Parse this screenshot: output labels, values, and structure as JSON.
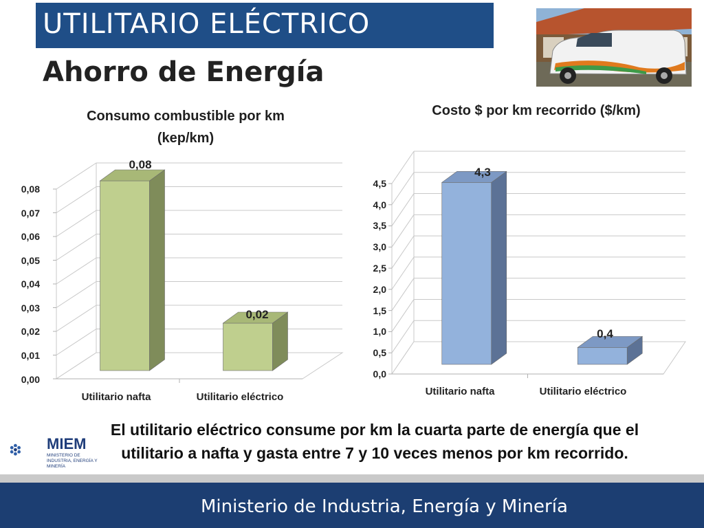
{
  "header": {
    "title": "UTILITARIO ELÉCTRICO",
    "subtitle": "Ahorro de Energía"
  },
  "chart_data": [
    {
      "type": "bar",
      "title": "Consumo combustible por km (kep/km)",
      "categories": [
        "Utilitario nafta",
        "Utilitario eléctrico"
      ],
      "values": [
        0.08,
        0.02
      ],
      "value_labels": [
        "0,08",
        "0,02"
      ],
      "yticks": [
        "0,00",
        "0,01",
        "0,02",
        "0,03",
        "0,04",
        "0,05",
        "0,06",
        "0,07",
        "0,08"
      ],
      "ylim": [
        0,
        0.08
      ],
      "xlabel": "",
      "ylabel": "",
      "bar_color": "#bfcf8e",
      "bar_side_color": "#7f8c5a",
      "bar_top_color": "#a8b877"
    },
    {
      "type": "bar",
      "title": "Costo $ por km recorrido ($/km)",
      "categories": [
        "Utilitario nafta",
        "Utilitario eléctrico"
      ],
      "values": [
        4.3,
        0.4
      ],
      "value_labels": [
        "4,3",
        "0,4"
      ],
      "yticks": [
        "0,0",
        "0,5",
        "1,0",
        "1,5",
        "2,0",
        "2,5",
        "3,0",
        "3,5",
        "4,0",
        "4,5"
      ],
      "ylim": [
        0,
        4.5
      ],
      "xlabel": "",
      "ylabel": "",
      "bar_color": "#93b2dc",
      "bar_side_color": "#5c7296",
      "bar_top_color": "#7d99c4"
    }
  ],
  "caption": "El utilitario eléctrico consume por km la cuarta parte de energía que el utilitario a nafta y gasta entre 7 y 10 veces menos por km recorrido.",
  "logo": {
    "name": "MIEM",
    "subtitle": "MINISTERIO DE INDUSTRIA, ENERGÍA Y MINERÍA"
  },
  "footer": {
    "text": "Ministerio de Industria, Energía y Minería"
  },
  "colors": {
    "title_bar": "#1f4e87",
    "footer_bar": "#1c3e72"
  }
}
